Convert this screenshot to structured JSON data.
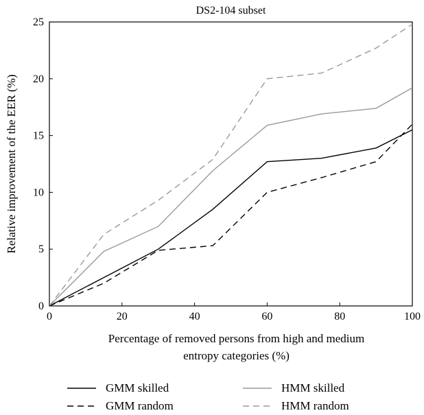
{
  "chart_data": {
    "type": "line",
    "title": "DS2-104 subset",
    "xlabel_lines": [
      "Percentage of removed persons from high and medium",
      "entropy categories (%)"
    ],
    "ylabel": "Relative improvement of the EER (%)",
    "xlim": [
      0,
      100
    ],
    "ylim": [
      0,
      25
    ],
    "xticks": [
      0,
      20,
      40,
      60,
      80,
      100
    ],
    "yticks": [
      0,
      5,
      10,
      15,
      20,
      25
    ],
    "grid": false,
    "legend_position": "bottom",
    "series": [
      {
        "name": "GMM skilled",
        "color": "#000000",
        "dash": "solid",
        "x": [
          0,
          15,
          30,
          45,
          60,
          75,
          90,
          100
        ],
        "y": [
          0,
          2.5,
          5.0,
          8.5,
          12.7,
          13.0,
          13.9,
          15.5
        ]
      },
      {
        "name": "GMM random",
        "color": "#000000",
        "dash": "dashed",
        "x": [
          0,
          15,
          30,
          45,
          60,
          75,
          90,
          100
        ],
        "y": [
          0,
          2.0,
          4.9,
          5.3,
          10.0,
          11.3,
          12.7,
          16.0
        ]
      },
      {
        "name": "HMM skilled",
        "color": "#999999",
        "dash": "solid",
        "x": [
          0,
          15,
          30,
          45,
          60,
          75,
          90,
          100
        ],
        "y": [
          0,
          4.8,
          7.0,
          11.9,
          15.9,
          16.9,
          17.4,
          19.2
        ]
      },
      {
        "name": "HMM random",
        "color": "#999999",
        "dash": "dashed",
        "x": [
          0,
          15,
          30,
          45,
          60,
          75,
          90,
          100
        ],
        "y": [
          0,
          6.3,
          9.3,
          12.9,
          20.0,
          20.5,
          22.7,
          24.8
        ]
      }
    ]
  }
}
